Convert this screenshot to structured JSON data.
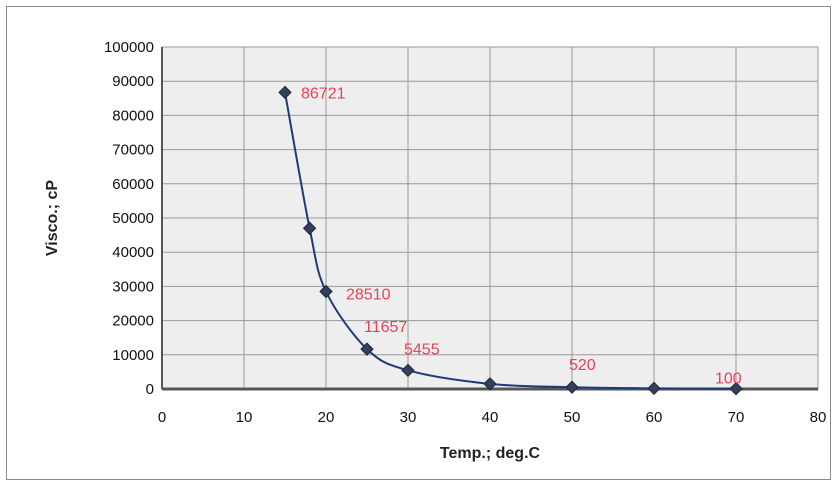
{
  "chart_data": {
    "type": "line",
    "xlabel": "Temp.; deg.C",
    "ylabel": "Visco.; cP",
    "xlim": [
      0,
      80
    ],
    "ylim": [
      0,
      100000
    ],
    "x_ticks": [
      "0",
      "10",
      "20",
      "30",
      "40",
      "50",
      "60",
      "70",
      "80"
    ],
    "y_ticks": [
      "0",
      "10000",
      "20000",
      "30000",
      "40000",
      "50000",
      "60000",
      "70000",
      "80000",
      "90000",
      "100000"
    ],
    "grid": true,
    "legend": "none",
    "series": [
      {
        "x": [
          15,
          18,
          20,
          25,
          30,
          40,
          50,
          60,
          70
        ],
        "y": [
          86721,
          47000,
          28510,
          11657,
          5455,
          1500,
          520,
          200,
          100
        ]
      }
    ],
    "data_labels": [
      {
        "x": 15,
        "y": 86721,
        "text": "86721"
      },
      {
        "x": 20,
        "y": 28510,
        "text": "28510"
      },
      {
        "x": 25,
        "y": 11657,
        "text": "11657"
      },
      {
        "x": 30,
        "y": 5455,
        "text": "5455"
      },
      {
        "x": 50,
        "y": 520,
        "text": "520"
      },
      {
        "x": 70,
        "y": 100,
        "text": "100"
      }
    ],
    "colors": {
      "line": "#1f3a7a",
      "marker": "#33405c",
      "label": "#e8415a",
      "grid": "#9a9a9a",
      "plot_bg": "#eeeeee"
    }
  }
}
